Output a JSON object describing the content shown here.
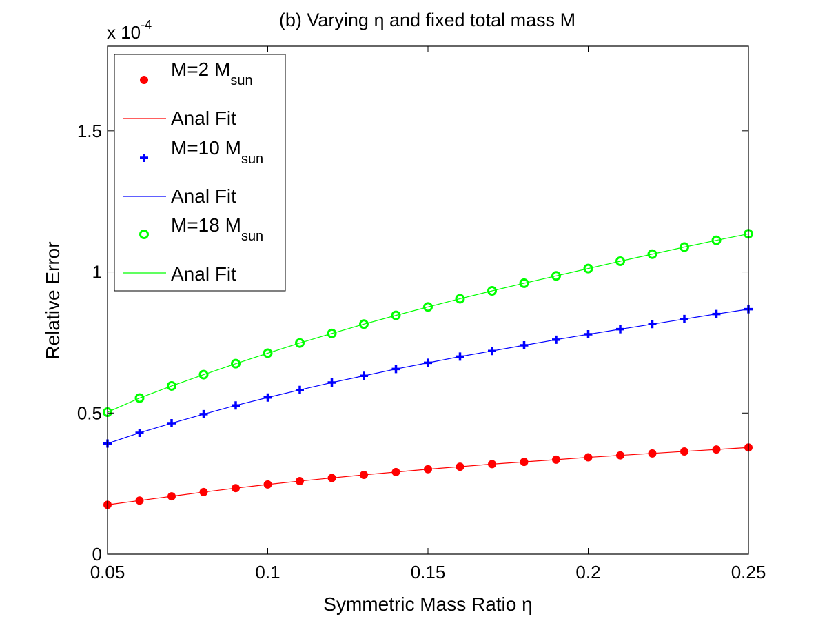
{
  "chart_data": {
    "type": "line",
    "title_prefix": "(b) Varying ",
    "title_symbol": "η",
    "title_suffix": " and fixed total mass M",
    "xlabel": "Symmetric Mass Ratio η",
    "ylabel": "Relative Error",
    "exponent_base": "x 10",
    "exponent_power": "-4",
    "xlim": [
      0.05,
      0.25
    ],
    "ylim": [
      0,
      1.8
    ],
    "xticks": [
      0.05,
      0.1,
      0.15,
      0.2,
      0.25
    ],
    "xtick_labels": [
      "0.05",
      "0.1",
      "0.15",
      "0.2",
      "0.25"
    ],
    "yticks": [
      0,
      0.5,
      1,
      1.5
    ],
    "ytick_labels": [
      "0",
      "0.5",
      "1",
      "1.5"
    ],
    "grid": false,
    "legend_position": "top-left",
    "x": [
      0.05,
      0.06,
      0.07,
      0.08,
      0.09,
      0.1,
      0.11,
      0.12,
      0.13,
      0.14,
      0.15,
      0.16,
      0.17,
      0.18,
      0.19,
      0.2,
      0.21,
      0.22,
      0.23,
      0.24,
      0.25
    ],
    "series": [
      {
        "name_main": "M=2 M",
        "name_sub": "sun",
        "marker": "filled-circle",
        "color": "#ff0000",
        "fit_label": "Anal Fit",
        "values": [
          0.175,
          0.19,
          0.205,
          0.22,
          0.234,
          0.247,
          0.259,
          0.27,
          0.281,
          0.291,
          0.301,
          0.31,
          0.319,
          0.327,
          0.335,
          0.343,
          0.35,
          0.357,
          0.364,
          0.371,
          0.378
        ]
      },
      {
        "name_main": "M=10 M",
        "name_sub": "sun",
        "marker": "plus",
        "color": "#0000ff",
        "fit_label": "Anal Fit",
        "values": [
          0.392,
          0.43,
          0.464,
          0.496,
          0.527,
          0.555,
          0.582,
          0.608,
          0.632,
          0.656,
          0.678,
          0.7,
          0.72,
          0.74,
          0.76,
          0.779,
          0.797,
          0.815,
          0.833,
          0.851,
          0.868
        ]
      },
      {
        "name_main": "M=18 M",
        "name_sub": "sun",
        "marker": "open-circle",
        "color": "#00ff00",
        "fit_label": "Anal Fit",
        "values": [
          0.503,
          0.553,
          0.596,
          0.636,
          0.675,
          0.712,
          0.748,
          0.782,
          0.815,
          0.846,
          0.876,
          0.905,
          0.933,
          0.96,
          0.986,
          1.012,
          1.038,
          1.063,
          1.088,
          1.112,
          1.135
        ]
      }
    ]
  }
}
